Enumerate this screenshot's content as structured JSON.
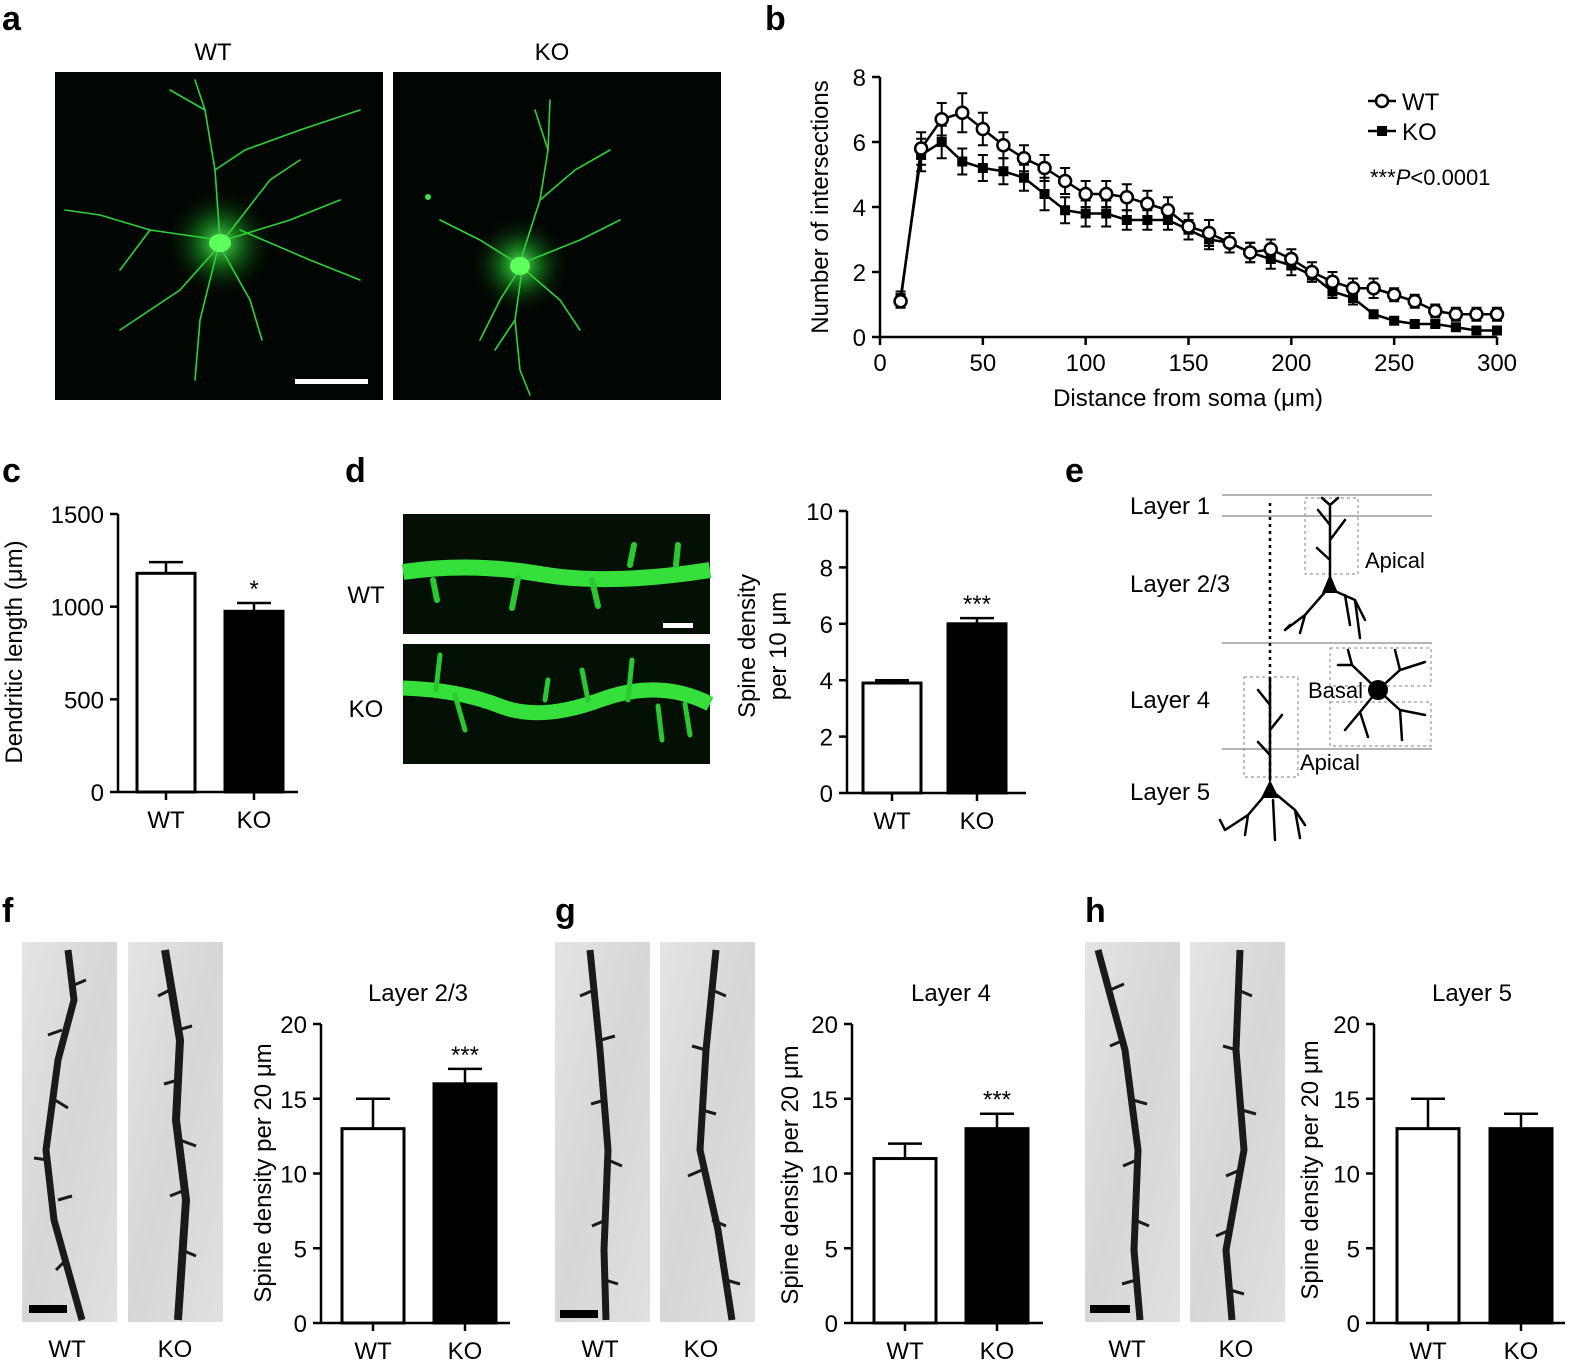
{
  "panel_letters": [
    "a",
    "b",
    "c",
    "d",
    "e",
    "f",
    "g",
    "h"
  ],
  "panel_a": {
    "wt_label": "WT",
    "ko_label": "KO"
  },
  "panel_d_images": {
    "wt_label": "WT",
    "ko_label": "KO"
  },
  "panel_e": {
    "layers": [
      "Layer 1",
      "Layer 2/3",
      "Layer 4",
      "Layer 5"
    ],
    "apical_top": "Apical",
    "basal": "Basal",
    "apical_bottom": "Apical"
  },
  "panel_f_images": {
    "wt_label": "WT",
    "ko_label": "KO"
  },
  "panel_g_images": {
    "wt_label": "WT",
    "ko_label": "KO"
  },
  "panel_h_images": {
    "wt_label": "WT",
    "ko_label": "KO"
  },
  "chart_data": [
    {
      "panel": "b",
      "type": "line",
      "xlabel": "Distance from soma (μm)",
      "ylabel": "Number of intersections",
      "xlim": [
        0,
        300
      ],
      "ylim": [
        0,
        8
      ],
      "xticks": [
        0,
        50,
        100,
        150,
        200,
        250,
        300
      ],
      "yticks": [
        0,
        2,
        4,
        6,
        8
      ],
      "x": [
        10,
        20,
        30,
        40,
        50,
        60,
        70,
        80,
        90,
        100,
        110,
        120,
        130,
        140,
        150,
        160,
        170,
        180,
        190,
        200,
        210,
        220,
        230,
        240,
        250,
        260,
        270,
        280,
        290,
        300
      ],
      "series": [
        {
          "name": "WT",
          "marker": "open-circle",
          "values": [
            1.1,
            5.8,
            6.7,
            6.9,
            6.4,
            5.9,
            5.5,
            5.2,
            4.8,
            4.4,
            4.4,
            4.3,
            4.1,
            3.9,
            3.4,
            3.2,
            2.9,
            2.6,
            2.7,
            2.4,
            2.0,
            1.7,
            1.5,
            1.5,
            1.3,
            1.1,
            0.8,
            0.7,
            0.7,
            0.7
          ],
          "errors": [
            0.2,
            0.5,
            0.5,
            0.6,
            0.5,
            0.4,
            0.4,
            0.4,
            0.4,
            0.4,
            0.4,
            0.4,
            0.4,
            0.4,
            0.4,
            0.4,
            0.3,
            0.3,
            0.3,
            0.3,
            0.3,
            0.3,
            0.3,
            0.3,
            0.2,
            0.2,
            0.2,
            0.2,
            0.2,
            0.2
          ]
        },
        {
          "name": "KO",
          "marker": "filled-square",
          "values": [
            1.2,
            5.6,
            6.0,
            5.4,
            5.2,
            5.1,
            4.9,
            4.4,
            3.9,
            3.8,
            3.8,
            3.6,
            3.6,
            3.6,
            3.3,
            3.0,
            2.9,
            2.6,
            2.4,
            2.2,
            1.9,
            1.4,
            1.2,
            0.7,
            0.5,
            0.4,
            0.4,
            0.3,
            0.2,
            0.2
          ],
          "errors": [
            0.2,
            0.5,
            0.5,
            0.4,
            0.4,
            0.4,
            0.4,
            0.5,
            0.4,
            0.4,
            0.4,
            0.3,
            0.3,
            0.3,
            0.3,
            0.3,
            0.3,
            0.3,
            0.3,
            0.3,
            0.2,
            0.2,
            0.2,
            0.1,
            0.1,
            0.1,
            0.1,
            0.1,
            0.1,
            0.1
          ]
        }
      ],
      "annotation": {
        "stars": "***",
        "p": "P",
        "value": "<0.0001"
      }
    },
    {
      "panel": "c",
      "type": "bar",
      "ylabel": "Dendritic length (μm)",
      "categories": [
        "WT",
        "KO"
      ],
      "values": [
        1180,
        975
      ],
      "errors": [
        60,
        45
      ],
      "ylim": [
        0,
        1500
      ],
      "yticks": [
        0,
        500,
        1000,
        1500
      ],
      "significance": [
        "",
        "*"
      ]
    },
    {
      "panel": "d",
      "type": "bar",
      "ylabel": "Spine density per 10 μm",
      "ylabel_lines": [
        "Spine density",
        "per 10 μm"
      ],
      "categories": [
        "WT",
        "KO"
      ],
      "values": [
        3.9,
        6.0
      ],
      "errors": [
        0.1,
        0.2
      ],
      "ylim": [
        0,
        10
      ],
      "yticks": [
        0,
        2,
        4,
        6,
        8,
        10
      ],
      "significance": [
        "",
        "***"
      ]
    },
    {
      "panel": "f",
      "type": "bar",
      "title": "Layer 2/3",
      "ylabel": "Spine density per 20 μm",
      "categories": [
        "WT",
        "KO"
      ],
      "values": [
        13,
        16
      ],
      "errors": [
        2,
        1
      ],
      "ylim": [
        0,
        20
      ],
      "yticks": [
        0,
        5,
        10,
        15,
        20
      ],
      "significance": [
        "",
        "***"
      ]
    },
    {
      "panel": "g",
      "type": "bar",
      "title": "Layer 4",
      "ylabel": "Spine density per 20 μm",
      "categories": [
        "WT",
        "KO"
      ],
      "values": [
        11,
        13
      ],
      "errors": [
        1,
        1
      ],
      "ylim": [
        0,
        20
      ],
      "yticks": [
        0,
        5,
        10,
        15,
        20
      ],
      "significance": [
        "",
        "***"
      ]
    },
    {
      "panel": "h",
      "type": "bar",
      "title": "Layer 5",
      "ylabel": "Spine density per 20 μm",
      "categories": [
        "WT",
        "KO"
      ],
      "values": [
        13,
        13
      ],
      "errors": [
        2,
        1
      ],
      "ylim": [
        0,
        20
      ],
      "yticks": [
        0,
        5,
        10,
        15,
        20
      ],
      "significance": [
        "",
        ""
      ]
    }
  ]
}
